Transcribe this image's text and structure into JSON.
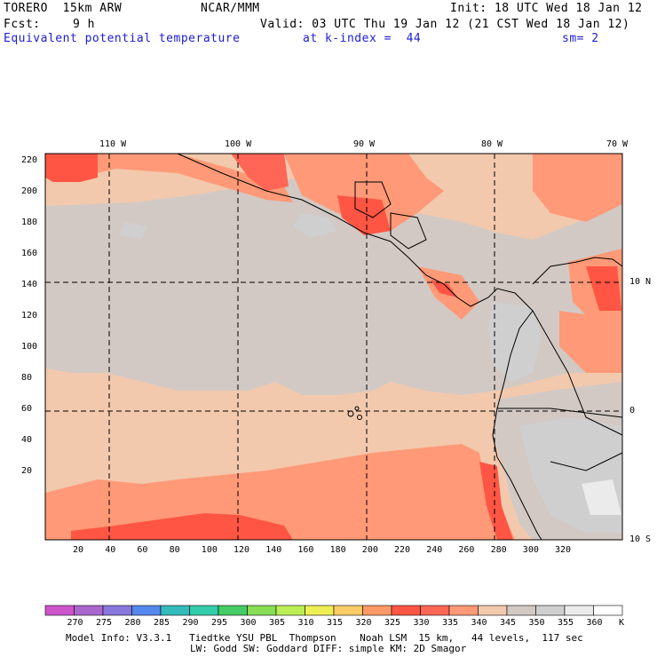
{
  "header": {
    "model": "TORERO  15km ARW",
    "center": "NCAR/MMM",
    "init": "Init: 18 UTC Wed 18 Jan 12",
    "fcst_label": "Fcst:",
    "fcst_value": "9 h",
    "valid": "Valid: 03 UTC Thu 19 Jan 12 (21 CST Wed 18 Jan 12)",
    "field": "Equivalent potential temperature",
    "level": "at k-index =  44",
    "smooth": "sm= 2"
  },
  "axes": {
    "x_ticks": [
      "20",
      "40",
      "60",
      "80",
      "100",
      "120",
      "140",
      "160",
      "180",
      "200",
      "220",
      "240",
      "260",
      "280",
      "300",
      "320"
    ],
    "y_ticks": [
      "220",
      "200",
      "180",
      "160",
      "140",
      "120",
      "100",
      "80",
      "60",
      "40",
      "20"
    ],
    "lon_labels": [
      "110 W",
      "100 W",
      "90 W",
      "80 W",
      "70 W"
    ],
    "lat_labels": [
      "10 N",
      "0",
      "10 S"
    ]
  },
  "colorbar": {
    "unit": "K",
    "ticks": [
      "270",
      "275",
      "280",
      "285",
      "290",
      "295",
      "300",
      "305",
      "310",
      "315",
      "320",
      "325",
      "330",
      "335",
      "340",
      "345",
      "350",
      "355",
      "360"
    ],
    "colors": [
      "#cc55cc",
      "#aa66cc",
      "#8877dd",
      "#5588ee",
      "#33bbbb",
      "#33ccaa",
      "#44cc66",
      "#88dd55",
      "#bbee55",
      "#eeee55",
      "#ffcc66",
      "#ff9966",
      "#ff5544",
      "#ff6655",
      "#ff9977",
      "#f2c9ad",
      "#d2c9c4",
      "#cfcfcf",
      "#ebebeb",
      "#ffffff"
    ]
  },
  "footer": {
    "line1": "Model Info: V3.3.1   Tiedtke YSU PBL  Thompson    Noah LSM  15 km,   44 levels,  117 sec",
    "line2": "LW: Godd SW: Goddard DIFF: simple KM: 2D Smagor"
  }
}
